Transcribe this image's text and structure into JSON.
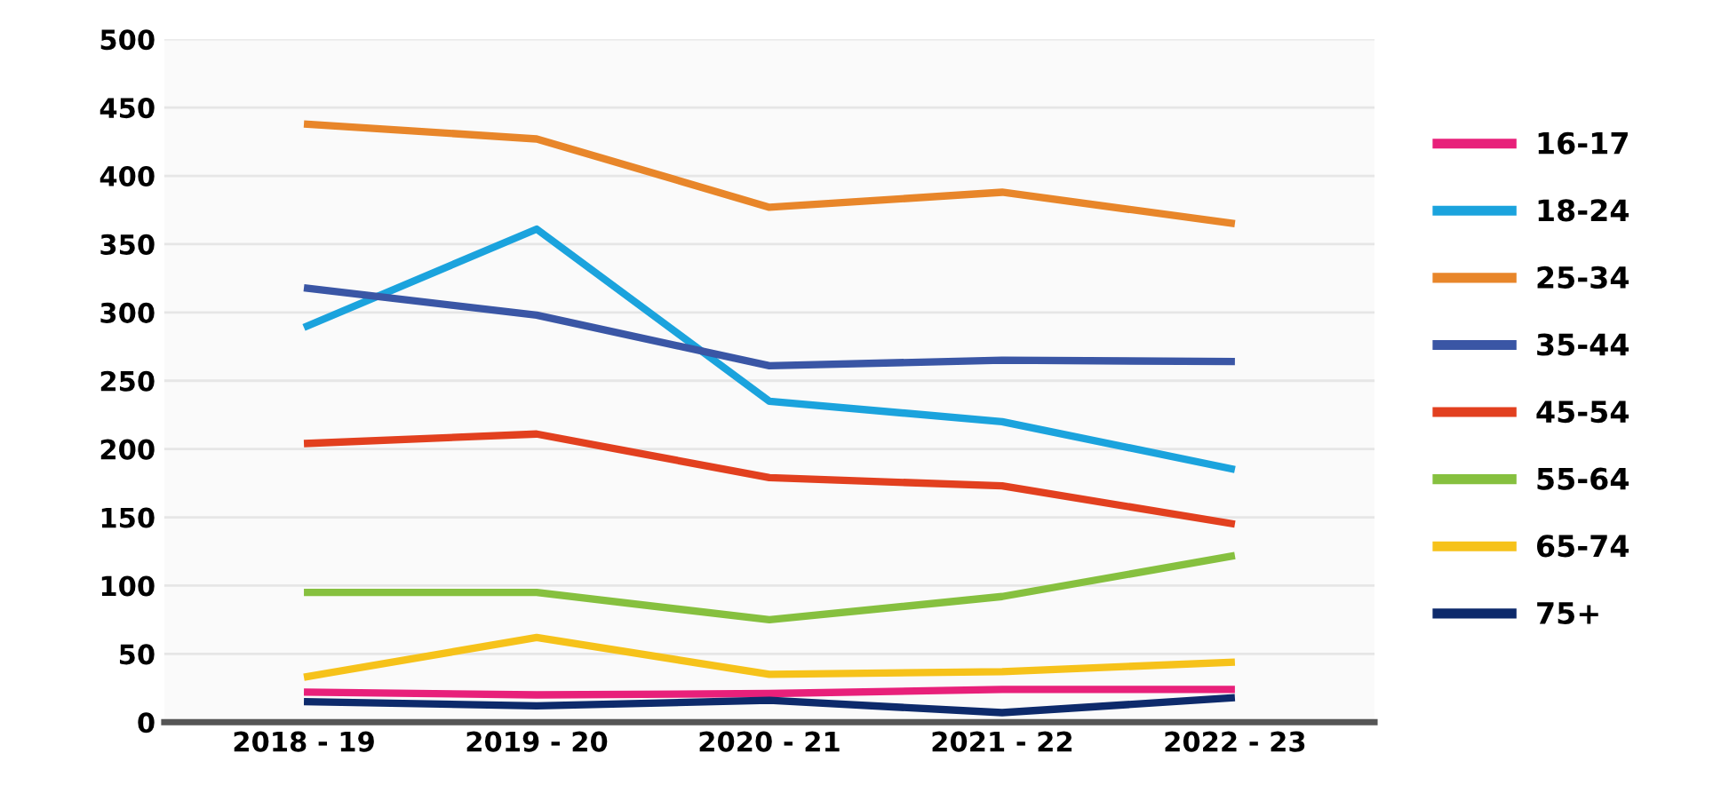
{
  "chart_data": {
    "type": "line",
    "categories": [
      "2018 - 19",
      "2019 - 20",
      "2020 - 21",
      "2021 - 22",
      "2022 - 23"
    ],
    "ylim": [
      0,
      500
    ],
    "yticks": [
      0,
      50,
      100,
      150,
      200,
      250,
      300,
      350,
      400,
      450,
      500
    ],
    "grid": "y",
    "legend": "right",
    "marker": "none",
    "line_style": "solid",
    "series": [
      {
        "name": "16-17",
        "color": "#e8207a",
        "values": [
          22,
          20,
          21,
          24,
          24
        ]
      },
      {
        "name": "18-24",
        "color": "#1ba3dd",
        "values": [
          289,
          361,
          235,
          220,
          185
        ]
      },
      {
        "name": "25-34",
        "color": "#e8862a",
        "values": [
          438,
          427,
          377,
          388,
          365
        ]
      },
      {
        "name": "35-44",
        "color": "#3a56a5",
        "values": [
          318,
          298,
          261,
          265,
          264
        ]
      },
      {
        "name": "45-54",
        "color": "#e2401f",
        "values": [
          204,
          211,
          179,
          173,
          145
        ]
      },
      {
        "name": "55-64",
        "color": "#86c03f",
        "values": [
          95,
          95,
          75,
          92,
          122
        ]
      },
      {
        "name": "65-74",
        "color": "#f6c21a",
        "values": [
          33,
          62,
          35,
          37,
          44
        ]
      },
      {
        "name": "75+",
        "color": "#0d2a6b",
        "values": [
          15,
          12,
          16,
          7,
          18
        ]
      }
    ]
  }
}
